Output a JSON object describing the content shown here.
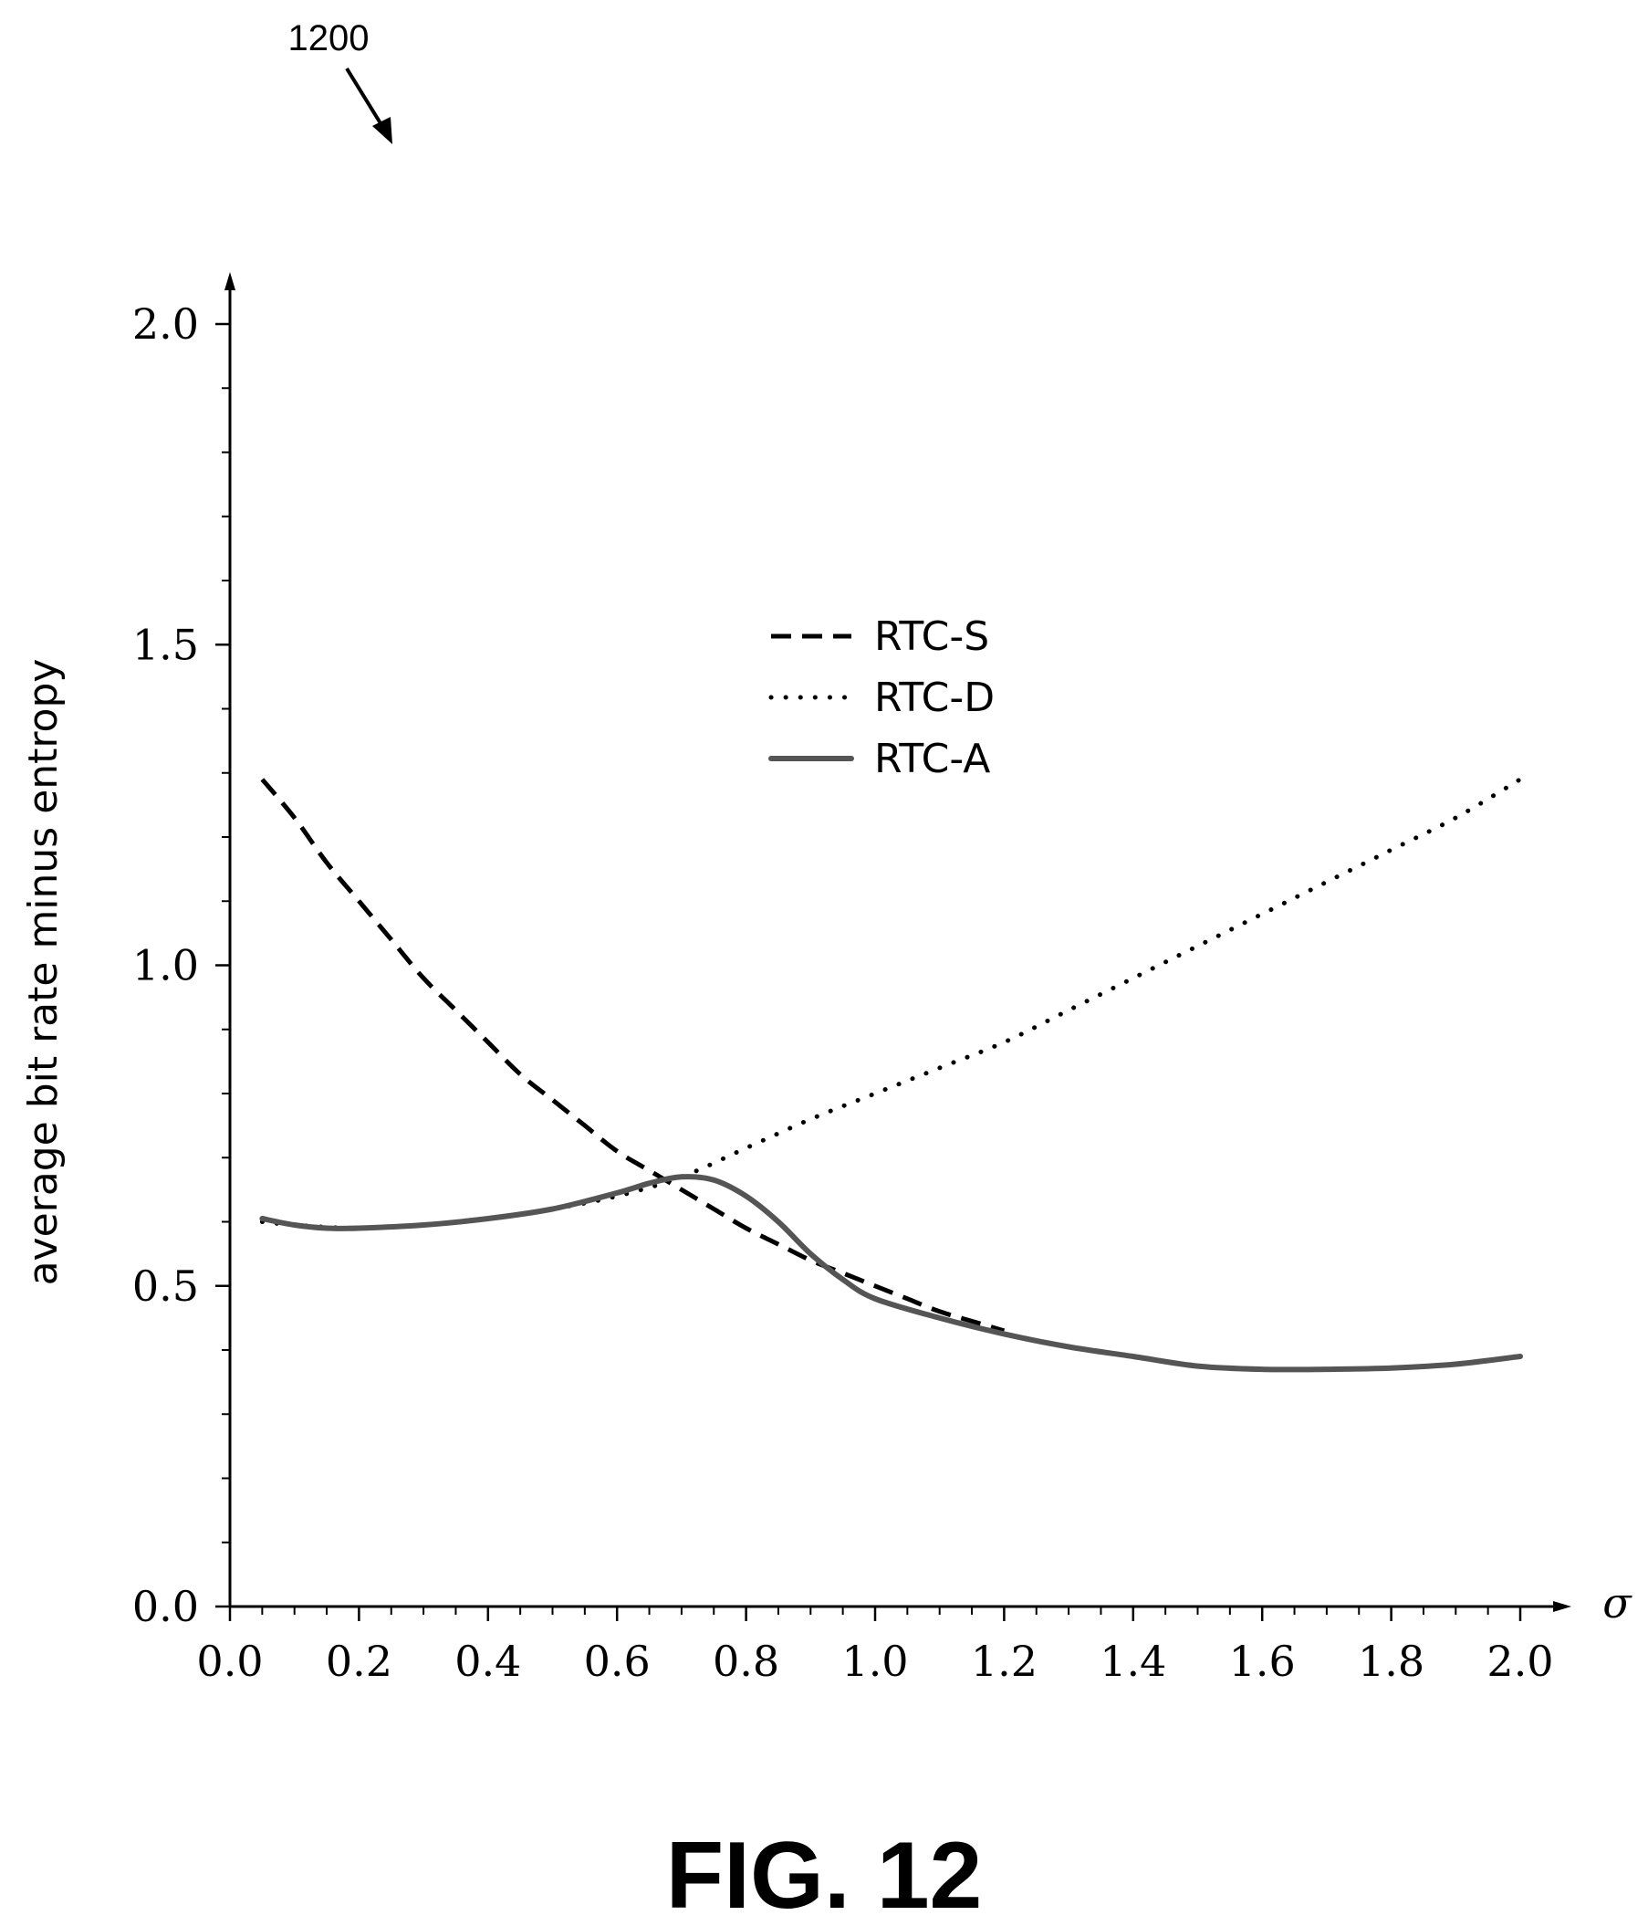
{
  "figure": {
    "reference_number": "1200",
    "label": "FIG. 12"
  },
  "chart_data": {
    "type": "line",
    "title": "",
    "xlabel": "σ",
    "ylabel": "average bit rate minus entropy",
    "xlim": [
      0.0,
      2.0
    ],
    "ylim": [
      0.0,
      2.0
    ],
    "x_ticks": [
      "0.0",
      "0.2",
      "0.4",
      "0.6",
      "0.8",
      "1.0",
      "1.2",
      "1.4",
      "1.6",
      "1.8",
      "2.0"
    ],
    "y_ticks": [
      "0.0",
      "0.5",
      "1.0",
      "1.5",
      "2.0"
    ],
    "grid": false,
    "legend_position": "center-right",
    "series": [
      {
        "name": "RTC-S",
        "style": "dashed",
        "color": "#000000",
        "x": [
          0.05,
          0.1,
          0.15,
          0.2,
          0.25,
          0.3,
          0.35,
          0.4,
          0.45,
          0.5,
          0.55,
          0.6,
          0.65,
          0.7,
          0.75,
          0.8,
          0.85,
          0.9,
          0.95,
          1.0,
          1.05,
          1.1,
          1.15,
          1.2
        ],
        "y": [
          1.29,
          1.23,
          1.16,
          1.1,
          1.04,
          0.98,
          0.93,
          0.88,
          0.83,
          0.79,
          0.75,
          0.71,
          0.68,
          0.65,
          0.62,
          0.59,
          0.565,
          0.54,
          0.52,
          0.5,
          0.48,
          0.46,
          0.445,
          0.43
        ]
      },
      {
        "name": "RTC-D",
        "style": "dotted",
        "color": "#000000",
        "x": [
          0.05,
          0.1,
          0.2,
          0.3,
          0.4,
          0.5,
          0.6,
          0.7,
          0.8,
          0.9,
          1.0,
          1.1,
          1.2,
          1.3,
          1.4,
          1.5,
          1.6,
          1.7,
          1.8,
          1.9,
          2.0
        ],
        "y": [
          0.6,
          0.595,
          0.59,
          0.595,
          0.605,
          0.62,
          0.64,
          0.67,
          0.715,
          0.76,
          0.8,
          0.84,
          0.88,
          0.93,
          0.98,
          1.03,
          1.08,
          1.13,
          1.18,
          1.23,
          1.29
        ]
      },
      {
        "name": "RTC-A",
        "style": "solid",
        "color": "#555555",
        "x": [
          0.05,
          0.1,
          0.15,
          0.2,
          0.3,
          0.4,
          0.5,
          0.6,
          0.65,
          0.7,
          0.75,
          0.8,
          0.85,
          0.9,
          0.95,
          1.0,
          1.1,
          1.2,
          1.3,
          1.4,
          1.5,
          1.6,
          1.7,
          1.8,
          1.9,
          2.0
        ],
        "y": [
          0.605,
          0.595,
          0.59,
          0.59,
          0.595,
          0.605,
          0.62,
          0.645,
          0.66,
          0.67,
          0.665,
          0.64,
          0.6,
          0.55,
          0.51,
          0.48,
          0.45,
          0.425,
          0.405,
          0.39,
          0.375,
          0.37,
          0.37,
          0.372,
          0.378,
          0.39
        ]
      }
    ]
  }
}
